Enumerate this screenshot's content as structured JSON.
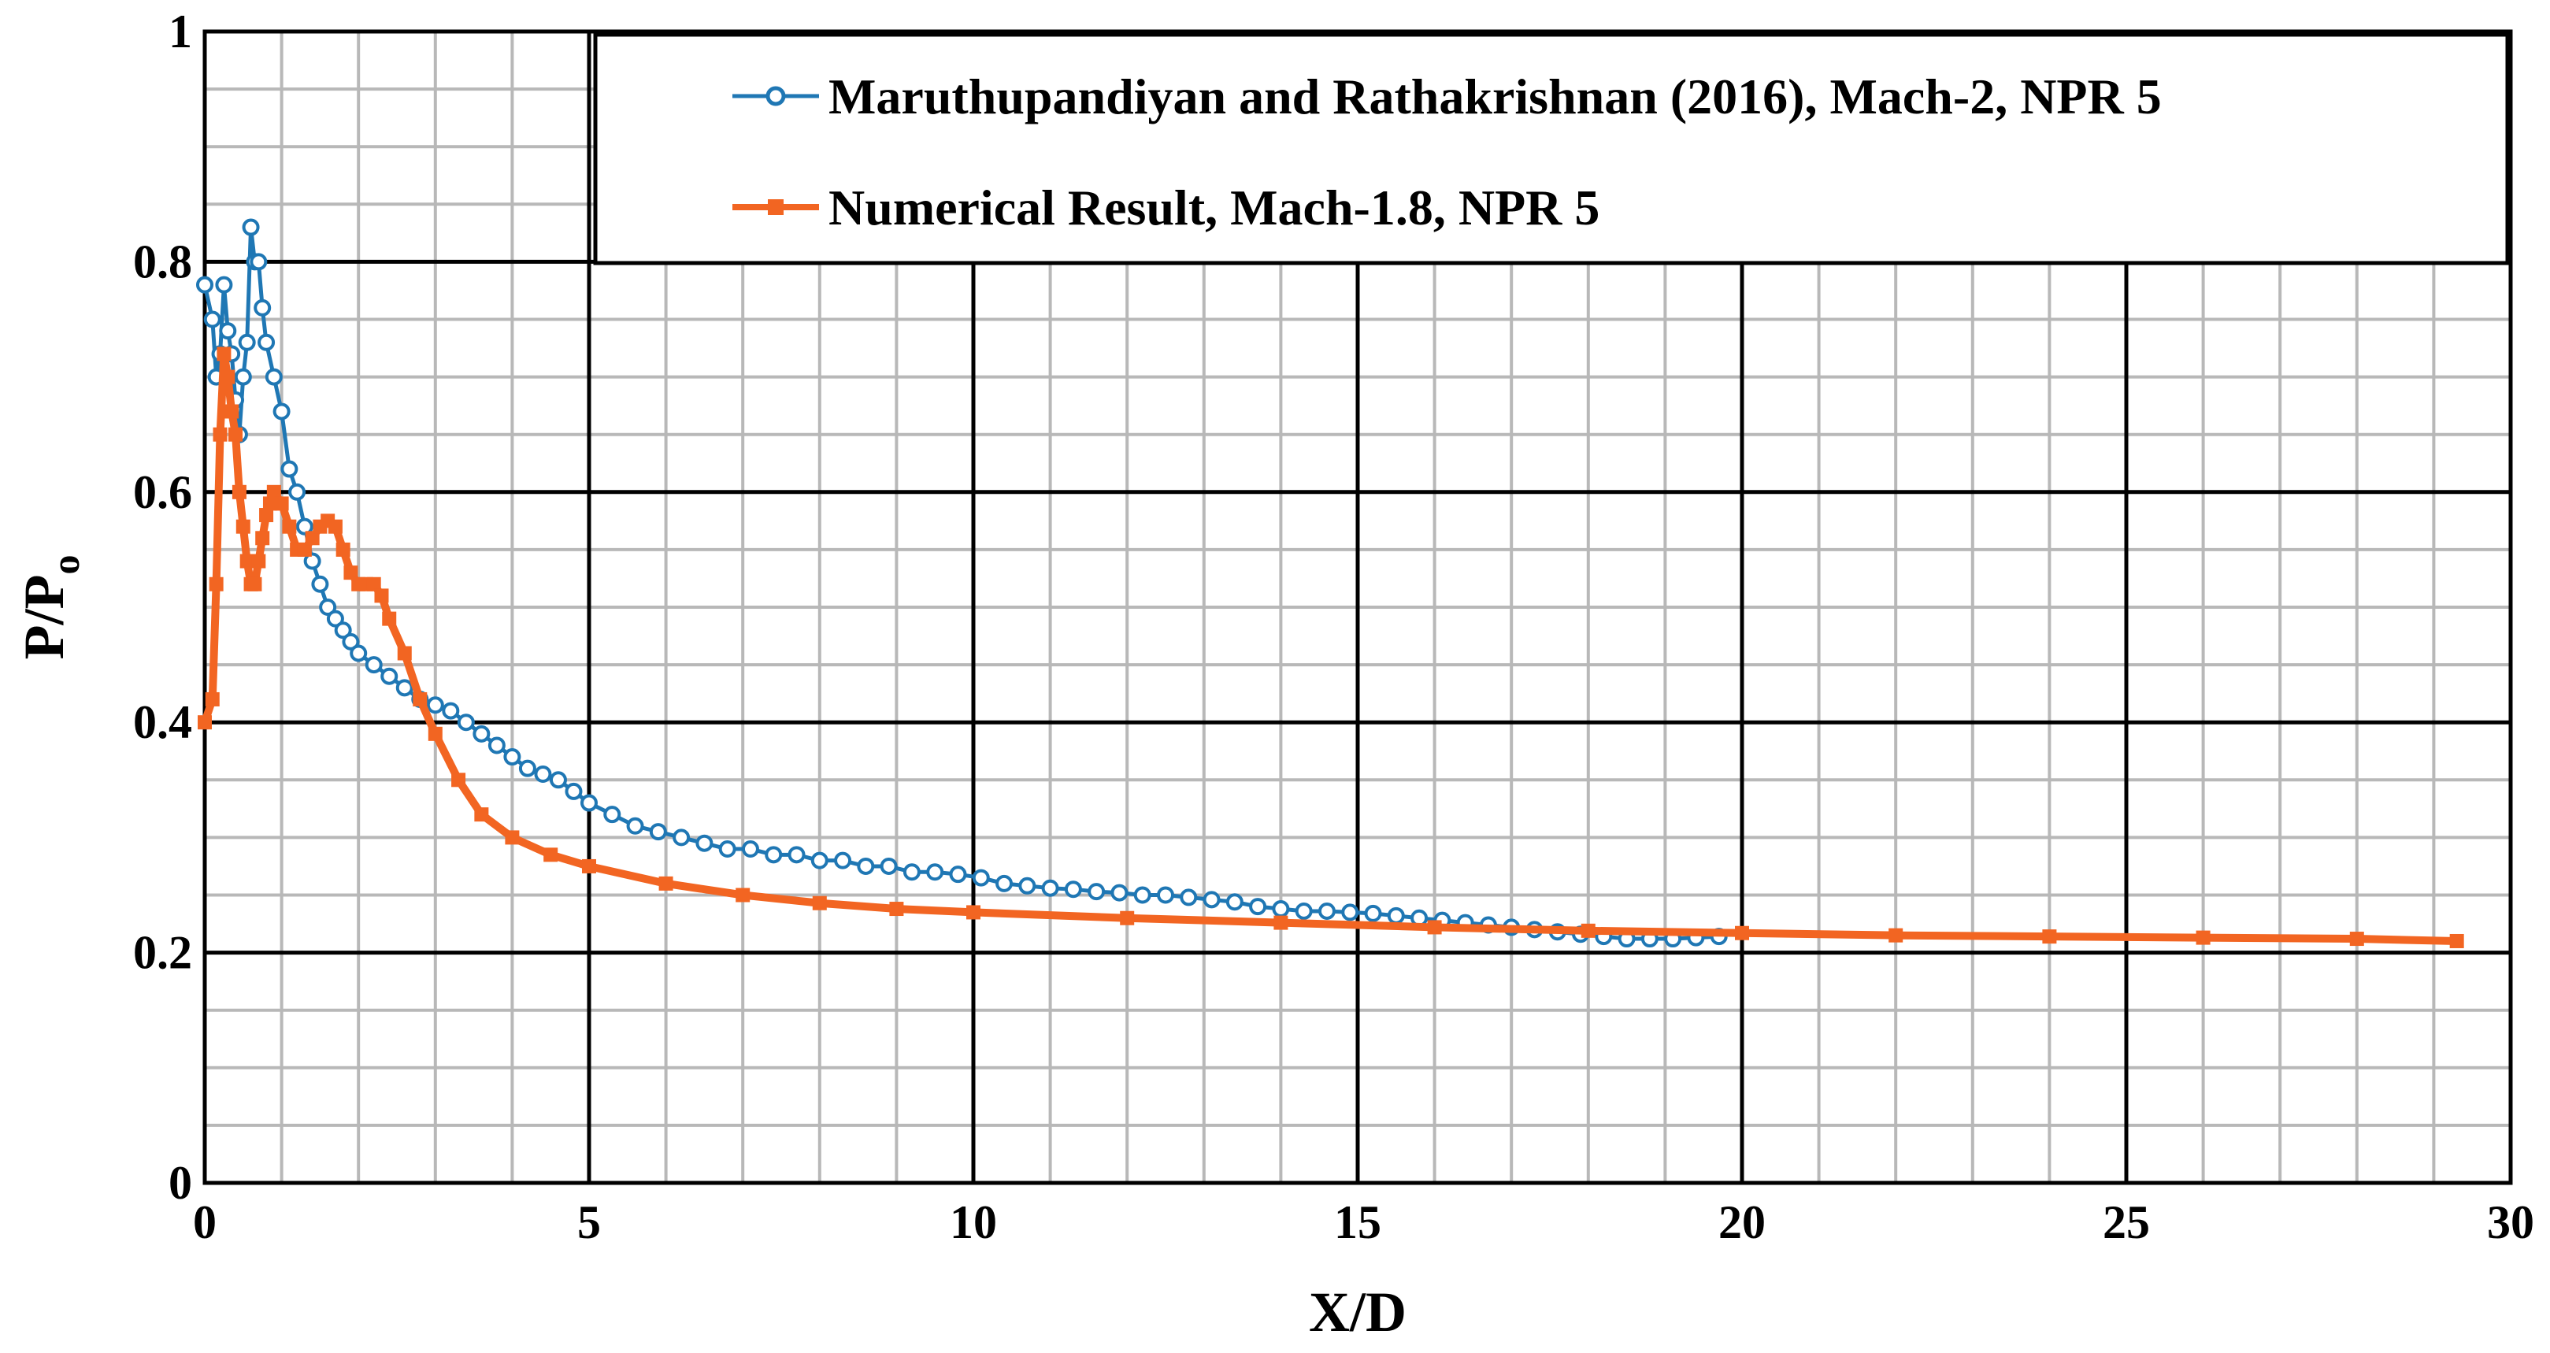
{
  "chart_data": {
    "type": "line",
    "title": "",
    "xlabel": "X/D",
    "ylabel_main": "P/P",
    "ylabel_sub": "o",
    "xlim": [
      0,
      30
    ],
    "ylim": [
      0,
      1
    ],
    "x_ticks": [
      "0",
      "5",
      "10",
      "15",
      "20",
      "25",
      "30"
    ],
    "y_ticks": [
      "0",
      "0.2",
      "0.4",
      "0.6",
      "0.8",
      "1"
    ],
    "grid": true,
    "legend_position": "top-right",
    "series": [
      {
        "name": "Maruthupandiyan and Rathakrishnan (2016), Mach-2, NPR 5",
        "color": "#1f77b4",
        "marker": "circle",
        "x": [
          0.0,
          0.1,
          0.15,
          0.2,
          0.25,
          0.3,
          0.35,
          0.4,
          0.45,
          0.5,
          0.55,
          0.6,
          0.65,
          0.7,
          0.75,
          0.8,
          0.9,
          1.0,
          1.1,
          1.2,
          1.3,
          1.4,
          1.5,
          1.6,
          1.7,
          1.8,
          1.9,
          2.0,
          2.2,
          2.4,
          2.6,
          2.8,
          3.0,
          3.2,
          3.4,
          3.6,
          3.8,
          4.0,
          4.2,
          4.4,
          4.6,
          4.8,
          5.0,
          5.3,
          5.6,
          5.9,
          6.2,
          6.5,
          6.8,
          7.1,
          7.4,
          7.7,
          8.0,
          8.3,
          8.6,
          8.9,
          9.2,
          9.5,
          9.8,
          10.1,
          10.4,
          10.7,
          11.0,
          11.3,
          11.6,
          11.9,
          12.2,
          12.5,
          12.8,
          13.1,
          13.4,
          13.7,
          14.0,
          14.3,
          14.6,
          14.9,
          15.2,
          15.5,
          15.8,
          16.1,
          16.4,
          16.7,
          17.0,
          17.3,
          17.6,
          17.9,
          18.2,
          18.5,
          18.8,
          19.1,
          19.4,
          19.7
        ],
        "y": [
          0.78,
          0.75,
          0.7,
          0.72,
          0.78,
          0.74,
          0.72,
          0.68,
          0.65,
          0.7,
          0.73,
          0.83,
          0.8,
          0.8,
          0.76,
          0.73,
          0.7,
          0.67,
          0.62,
          0.6,
          0.57,
          0.54,
          0.52,
          0.5,
          0.49,
          0.48,
          0.47,
          0.46,
          0.45,
          0.44,
          0.43,
          0.42,
          0.415,
          0.41,
          0.4,
          0.39,
          0.38,
          0.37,
          0.36,
          0.355,
          0.35,
          0.34,
          0.33,
          0.32,
          0.31,
          0.305,
          0.3,
          0.295,
          0.29,
          0.29,
          0.285,
          0.285,
          0.28,
          0.28,
          0.275,
          0.275,
          0.27,
          0.27,
          0.268,
          0.265,
          0.26,
          0.258,
          0.256,
          0.255,
          0.253,
          0.252,
          0.25,
          0.25,
          0.248,
          0.246,
          0.244,
          0.24,
          0.238,
          0.236,
          0.236,
          0.235,
          0.234,
          0.232,
          0.23,
          0.228,
          0.226,
          0.224,
          0.222,
          0.22,
          0.218,
          0.216,
          0.214,
          0.212,
          0.212,
          0.212,
          0.213,
          0.214
        ]
      },
      {
        "name": "Numerical Result, Mach-1.8, NPR 5",
        "color": "#f26522",
        "marker": "square",
        "x": [
          0.0,
          0.1,
          0.15,
          0.2,
          0.25,
          0.3,
          0.35,
          0.4,
          0.45,
          0.5,
          0.55,
          0.6,
          0.65,
          0.7,
          0.75,
          0.8,
          0.85,
          0.9,
          1.0,
          1.1,
          1.2,
          1.3,
          1.4,
          1.5,
          1.6,
          1.7,
          1.8,
          1.9,
          2.0,
          2.1,
          2.2,
          2.3,
          2.4,
          2.6,
          2.8,
          3.0,
          3.3,
          3.6,
          4.0,
          4.5,
          5.0,
          6.0,
          7.0,
          8.0,
          9.0,
          10.0,
          12.0,
          14.0,
          16.0,
          18.0,
          20.0,
          22.0,
          24.0,
          26.0,
          28.0,
          29.3
        ],
        "y": [
          0.4,
          0.42,
          0.52,
          0.65,
          0.72,
          0.7,
          0.67,
          0.65,
          0.6,
          0.57,
          0.54,
          0.52,
          0.52,
          0.54,
          0.56,
          0.58,
          0.59,
          0.6,
          0.59,
          0.57,
          0.55,
          0.55,
          0.56,
          0.57,
          0.575,
          0.57,
          0.55,
          0.53,
          0.52,
          0.52,
          0.52,
          0.51,
          0.49,
          0.46,
          0.42,
          0.39,
          0.35,
          0.32,
          0.3,
          0.285,
          0.275,
          0.26,
          0.25,
          0.243,
          0.238,
          0.235,
          0.23,
          0.226,
          0.222,
          0.219,
          0.217,
          0.215,
          0.214,
          0.213,
          0.212,
          0.21
        ]
      }
    ]
  }
}
